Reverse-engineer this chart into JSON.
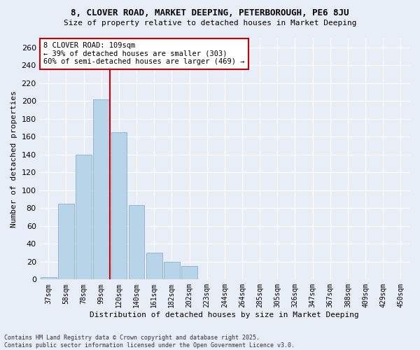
{
  "title1": "8, CLOVER ROAD, MARKET DEEPING, PETERBOROUGH, PE6 8JU",
  "title2": "Size of property relative to detached houses in Market Deeping",
  "xlabel": "Distribution of detached houses by size in Market Deeping",
  "ylabel": "Number of detached properties",
  "categories": [
    "37sqm",
    "58sqm",
    "78sqm",
    "99sqm",
    "120sqm",
    "140sqm",
    "161sqm",
    "182sqm",
    "202sqm",
    "223sqm",
    "244sqm",
    "264sqm",
    "285sqm",
    "305sqm",
    "326sqm",
    "347sqm",
    "367sqm",
    "388sqm",
    "409sqm",
    "429sqm",
    "450sqm"
  ],
  "values": [
    3,
    85,
    140,
    202,
    165,
    83,
    30,
    20,
    15,
    0,
    0,
    0,
    0,
    0,
    0,
    0,
    0,
    0,
    0,
    0,
    0
  ],
  "bar_color": "#b8d4e8",
  "bar_edge_color": "#8ab0cc",
  "vline_color": "#cc0000",
  "annotation_box_color": "#ffffff",
  "annotation_box_edge": "#cc0000",
  "annotation_title": "8 CLOVER ROAD: 109sqm",
  "annotation_line1": "← 39% of detached houses are smaller (303)",
  "annotation_line2": "60% of semi-detached houses are larger (469) →",
  "footer1": "Contains HM Land Registry data © Crown copyright and database right 2025.",
  "footer2": "Contains public sector information licensed under the Open Government Licence v3.0.",
  "bg_color": "#e8eef8",
  "ylim": [
    0,
    270
  ],
  "yticks": [
    0,
    20,
    40,
    60,
    80,
    100,
    120,
    140,
    160,
    180,
    200,
    220,
    240,
    260
  ],
  "vline_x": 3.5
}
